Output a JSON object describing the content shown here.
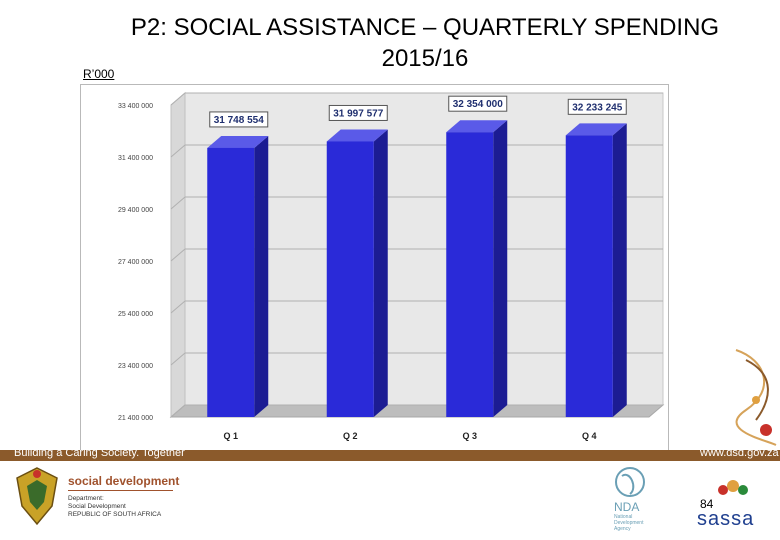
{
  "slide": {
    "title": "P2: SOCIAL ASSISTANCE  – QUARTERLY SPENDING 2015/16",
    "unit": "R’000",
    "page_number": "84"
  },
  "footer": {
    "tagline": "Building a Caring Society. Together",
    "url": "www.dsd.gov.za",
    "dept_title": "social development",
    "dept_name_lines": [
      "Department:",
      "Social Development",
      "REPUBLIC OF SOUTH AFRICA"
    ],
    "nda_label": "NDA",
    "nda_sub": "National Development Agency",
    "sassa_label": "sassa"
  },
  "colors": {
    "bar_front": "#2a2ad8",
    "bar_side": "#1c1c93",
    "bar_top": "#5a5ae8",
    "footer_band": "#8b5a2b"
  },
  "chart_data": {
    "type": "bar",
    "categories": [
      "Q 1",
      "Q 2",
      "Q 3",
      "Q 4"
    ],
    "values": [
      31748554,
      31997577,
      32354000,
      32233245
    ],
    "data_labels": [
      "31 748 554",
      "31 997 577",
      "32 354 000",
      "32 233 245"
    ],
    "y_ticks": [
      "21 400 000",
      "23 400 000",
      "25 400 000",
      "27 400 000",
      "29 400 000",
      "31 400 000",
      "33 400 000"
    ],
    "ylim": [
      21400000,
      33400000
    ],
    "title": "",
    "xlabel": "",
    "ylabel": "",
    "grid": true,
    "style": "3d"
  }
}
